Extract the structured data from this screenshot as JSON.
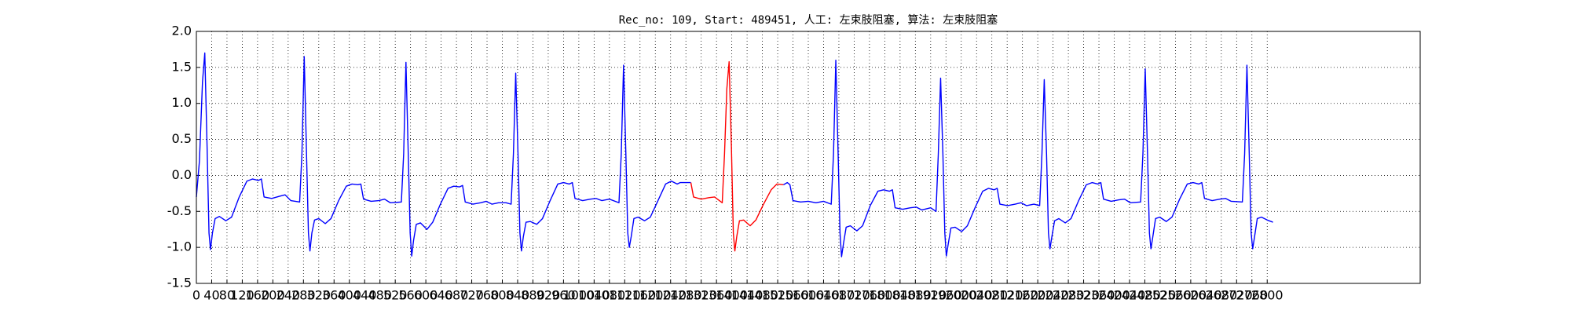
{
  "chart_data": {
    "type": "line",
    "title": "Rec_no: 109, Start: 489451, 人工: 左束肢阻塞, 算法: 左束肢阻塞",
    "grid": true,
    "xlim": [
      0,
      3200
    ],
    "ylim": [
      -1.5,
      2.0
    ],
    "xticks": [
      0,
      40,
      80,
      120,
      160,
      200,
      240,
      280,
      320,
      360,
      400,
      440,
      480,
      520,
      560,
      600,
      640,
      680,
      720,
      760,
      800,
      840,
      880,
      920,
      960,
      1000,
      1040,
      1080,
      1120,
      1160,
      1200,
      1240,
      1280,
      1320,
      1360,
      1400,
      1440,
      1480,
      1520,
      1560,
      1600,
      1640,
      1680,
      1720,
      1760,
      1800,
      1840,
      1880,
      1920,
      1960,
      2000,
      2040,
      2080,
      2120,
      2160,
      2200,
      2240,
      2280,
      2320,
      2360,
      2400,
      2440,
      2480,
      2520,
      2560,
      2600,
      2640,
      2680,
      2720,
      2760,
      2800
    ],
    "yticks": [
      {
        "value": -1.5,
        "label": "-1.5"
      },
      {
        "value": -1.0,
        "label": "-1.0"
      },
      -0.5,
      {
        "value": 0.0,
        "label": "0.0"
      },
      0.5,
      {
        "value": 1.0,
        "label": "1.0"
      },
      1.5,
      {
        "value": 2.0,
        "label": "2.0"
      }
    ],
    "series": [
      {
        "color": "#0000ff",
        "x": [
          0,
          8,
          16,
          22,
          28,
          33,
          37,
          42,
          49,
          60,
          77,
          92,
          112,
          132,
          147,
          162,
          170,
          177,
          197,
          217,
          232,
          247,
          270,
          276,
          282,
          288,
          293,
          297,
          302,
          309,
          320,
          337,
          352,
          372,
          392,
          407,
          422,
          430,
          437,
          457,
          477,
          492,
          507,
          536,
          542,
          548,
          554,
          559,
          563,
          568,
          575,
          586,
          603,
          618,
          638,
          658,
          673,
          688,
          696,
          703,
          723,
          743,
          758,
          773,
          790,
          810,
          823,
          829,
          835,
          841,
          846,
          850,
          855,
          862,
          873,
          890,
          905,
          925,
          945,
          960,
          975,
          983,
          990,
          1010,
          1030,
          1045,
          1060,
          1080,
          1105,
          1111,
          1117,
          1123,
          1128,
          1132,
          1137,
          1144,
          1155,
          1172,
          1187,
          1207,
          1227,
          1242,
          1257,
          1265,
          1275,
          1293,
          1393,
          1535,
          1545,
          1552,
          1560,
          1580,
          1600,
          1620,
          1640,
          1660,
          1666,
          1672,
          1678,
          1683,
          1687,
          1692,
          1699,
          1710,
          1727,
          1742,
          1762,
          1782,
          1797,
          1812,
          1820,
          1827,
          1847,
          1867,
          1882,
          1897,
          1920,
          1934,
          1940,
          1946,
          1952,
          1957,
          1961,
          1966,
          1973,
          1984,
          2001,
          2016,
          2036,
          2056,
          2071,
          2086,
          2094,
          2101,
          2121,
          2141,
          2156,
          2171,
          2190,
          2205,
          2211,
          2217,
          2223,
          2228,
          2232,
          2237,
          2244,
          2255,
          2272,
          2287,
          2307,
          2327,
          2342,
          2357,
          2365,
          2372,
          2392,
          2412,
          2427,
          2442,
          2469,
          2475,
          2481,
          2487,
          2492,
          2496,
          2501,
          2508,
          2519,
          2536,
          2551,
          2571,
          2591,
          2606,
          2621,
          2629,
          2636,
          2656,
          2676,
          2691,
          2706,
          2735,
          2741,
          2747,
          2753,
          2758,
          2762,
          2767,
          2774,
          2785,
          2800,
          2815
        ],
        "values": [
          -0.3,
          0.2,
          1.3,
          1.7,
          0.4,
          -0.8,
          -1.03,
          -0.8,
          -0.6,
          -0.57,
          -0.63,
          -0.58,
          -0.3,
          -0.08,
          -0.05,
          -0.07,
          -0.05,
          -0.3,
          -0.32,
          -0.29,
          -0.27,
          -0.35,
          -0.37,
          0.3,
          1.65,
          0.3,
          -0.8,
          -1.05,
          -0.8,
          -0.62,
          -0.6,
          -0.67,
          -0.6,
          -0.35,
          -0.15,
          -0.12,
          -0.13,
          -0.12,
          -0.33,
          -0.36,
          -0.35,
          -0.33,
          -0.38,
          -0.37,
          0.3,
          1.57,
          0.3,
          -0.8,
          -1.12,
          -0.9,
          -0.68,
          -0.66,
          -0.75,
          -0.65,
          -0.4,
          -0.18,
          -0.15,
          -0.16,
          -0.14,
          -0.37,
          -0.4,
          -0.38,
          -0.36,
          -0.4,
          -0.38,
          -0.38,
          -0.4,
          0.3,
          1.42,
          0.3,
          -0.8,
          -1.05,
          -0.85,
          -0.65,
          -0.64,
          -0.68,
          -0.6,
          -0.35,
          -0.12,
          -0.1,
          -0.12,
          -0.1,
          -0.32,
          -0.35,
          -0.33,
          -0.32,
          -0.35,
          -0.33,
          -0.38,
          0.3,
          1.53,
          0.3,
          -0.8,
          -1.0,
          -0.85,
          -0.6,
          -0.58,
          -0.63,
          -0.58,
          -0.35,
          -0.12,
          -0.08,
          -0.12,
          -0.1,
          -0.1,
          -0.1,
          null,
          -0.13,
          -0.1,
          -0.13,
          -0.35,
          -0.37,
          -0.36,
          -0.38,
          -0.36,
          -0.4,
          0.3,
          1.6,
          0.3,
          -0.8,
          -1.13,
          -0.95,
          -0.72,
          -0.7,
          -0.77,
          -0.7,
          -0.42,
          -0.22,
          -0.2,
          -0.22,
          -0.2,
          -0.45,
          -0.47,
          -0.45,
          -0.44,
          -0.48,
          -0.45,
          -0.5,
          0.3,
          1.35,
          0.3,
          -0.8,
          -1.12,
          -0.95,
          -0.73,
          -0.72,
          -0.78,
          -0.7,
          -0.45,
          -0.22,
          -0.18,
          -0.2,
          -0.18,
          -0.4,
          -0.42,
          -0.4,
          -0.38,
          -0.42,
          -0.4,
          -0.42,
          0.3,
          1.33,
          0.3,
          -0.8,
          -1.02,
          -0.85,
          -0.63,
          -0.6,
          -0.66,
          -0.6,
          -0.35,
          -0.13,
          -0.1,
          -0.12,
          -0.1,
          -0.33,
          -0.36,
          -0.34,
          -0.33,
          -0.38,
          -0.37,
          0.3,
          1.48,
          0.3,
          -0.8,
          -1.02,
          -0.85,
          -0.6,
          -0.58,
          -0.64,
          -0.58,
          -0.33,
          -0.12,
          -0.1,
          -0.12,
          -0.1,
          -0.32,
          -0.35,
          -0.33,
          -0.32,
          -0.36,
          -0.37,
          0.3,
          1.53,
          0.3,
          -0.8,
          -1.02,
          -0.85,
          -0.6,
          -0.58,
          -0.62,
          -0.65
        ]
      },
      {
        "color": "#ff0000",
        "x": [
          1293,
          1300,
          1320,
          1340,
          1355,
          1375,
          1381,
          1387,
          1393,
          1399,
          1404,
          1408,
          1413,
          1420,
          1431,
          1448,
          1463,
          1483,
          1503,
          1518,
          1535
        ],
        "values": [
          -0.1,
          -0.3,
          -0.33,
          -0.31,
          -0.3,
          -0.38,
          0.3,
          1.2,
          1.58,
          0.4,
          -0.8,
          -1.05,
          -0.85,
          -0.63,
          -0.62,
          -0.7,
          -0.62,
          -0.4,
          -0.2,
          -0.12,
          -0.13
        ]
      }
    ]
  }
}
